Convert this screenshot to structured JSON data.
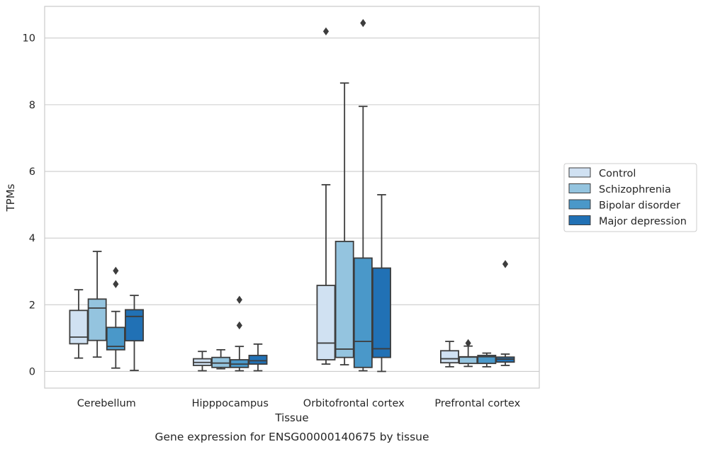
{
  "chart_data": {
    "type": "box",
    "caption": "Gene expression for ENSG00000140675 by tissue",
    "xlabel": "Tissue",
    "ylabel": "TPMs",
    "ylim": [
      -0.5,
      10.95
    ],
    "yticks": [
      0,
      2,
      4,
      6,
      8,
      10
    ],
    "grid": true,
    "legend_position": "right",
    "categories": [
      "Cerebellum",
      "Hipppocampus",
      "Orbitofrontal cortex",
      "Prefrontal cortex"
    ],
    "series": [
      {
        "name": "Control",
        "color": "#d0e1f2",
        "boxes": [
          {
            "whislo": 0.4,
            "q1": 0.83,
            "med": 1.03,
            "q3": 1.83,
            "whishi": 2.45,
            "fliers": []
          },
          {
            "whislo": 0.02,
            "q1": 0.18,
            "med": 0.27,
            "q3": 0.38,
            "whishi": 0.6,
            "fliers": []
          },
          {
            "whislo": 0.22,
            "q1": 0.35,
            "med": 0.85,
            "q3": 2.58,
            "whishi": 5.6,
            "fliers": [
              10.2
            ]
          },
          {
            "whislo": 0.14,
            "q1": 0.26,
            "med": 0.38,
            "q3": 0.62,
            "whishi": 0.9,
            "fliers": []
          }
        ]
      },
      {
        "name": "Schizophrenia",
        "color": "#94c4df",
        "boxes": [
          {
            "whislo": 0.43,
            "q1": 0.93,
            "med": 1.9,
            "q3": 2.17,
            "whishi": 3.6,
            "fliers": []
          },
          {
            "whislo": 0.08,
            "q1": 0.12,
            "med": 0.25,
            "q3": 0.42,
            "whishi": 0.65,
            "fliers": []
          },
          {
            "whislo": 0.2,
            "q1": 0.42,
            "med": 0.67,
            "q3": 3.9,
            "whishi": 8.65,
            "fliers": []
          },
          {
            "whislo": 0.15,
            "q1": 0.24,
            "med": 0.43,
            "q3": 0.44,
            "whishi": 0.76,
            "fliers": [
              0.85
            ]
          }
        ]
      },
      {
        "name": "Bipolar disorder",
        "color": "#4a98c9",
        "boxes": [
          {
            "whislo": 0.1,
            "q1": 0.65,
            "med": 0.75,
            "q3": 1.32,
            "whishi": 1.8,
            "fliers": [
              2.62,
              3.02
            ]
          },
          {
            "whislo": 0.02,
            "q1": 0.12,
            "med": 0.22,
            "q3": 0.35,
            "whishi": 0.75,
            "fliers": [
              1.38,
              2.15
            ]
          },
          {
            "whislo": 0.02,
            "q1": 0.12,
            "med": 0.9,
            "q3": 3.4,
            "whishi": 7.95,
            "fliers": [
              10.45
            ]
          },
          {
            "whislo": 0.14,
            "q1": 0.24,
            "med": 0.44,
            "q3": 0.48,
            "whishi": 0.55,
            "fliers": []
          }
        ]
      },
      {
        "name": "Major depression",
        "color": "#2171b5",
        "boxes": [
          {
            "whislo": 0.03,
            "q1": 0.92,
            "med": 1.65,
            "q3": 1.85,
            "whishi": 2.28,
            "fliers": []
          },
          {
            "whislo": 0.02,
            "q1": 0.22,
            "med": 0.32,
            "q3": 0.48,
            "whishi": 0.82,
            "fliers": []
          },
          {
            "whislo": 0.0,
            "q1": 0.42,
            "med": 0.68,
            "q3": 3.1,
            "whishi": 5.3,
            "fliers": []
          },
          {
            "whislo": 0.18,
            "q1": 0.28,
            "med": 0.37,
            "q3": 0.43,
            "whishi": 0.52,
            "fliers": [
              3.22
            ]
          }
        ]
      }
    ]
  }
}
